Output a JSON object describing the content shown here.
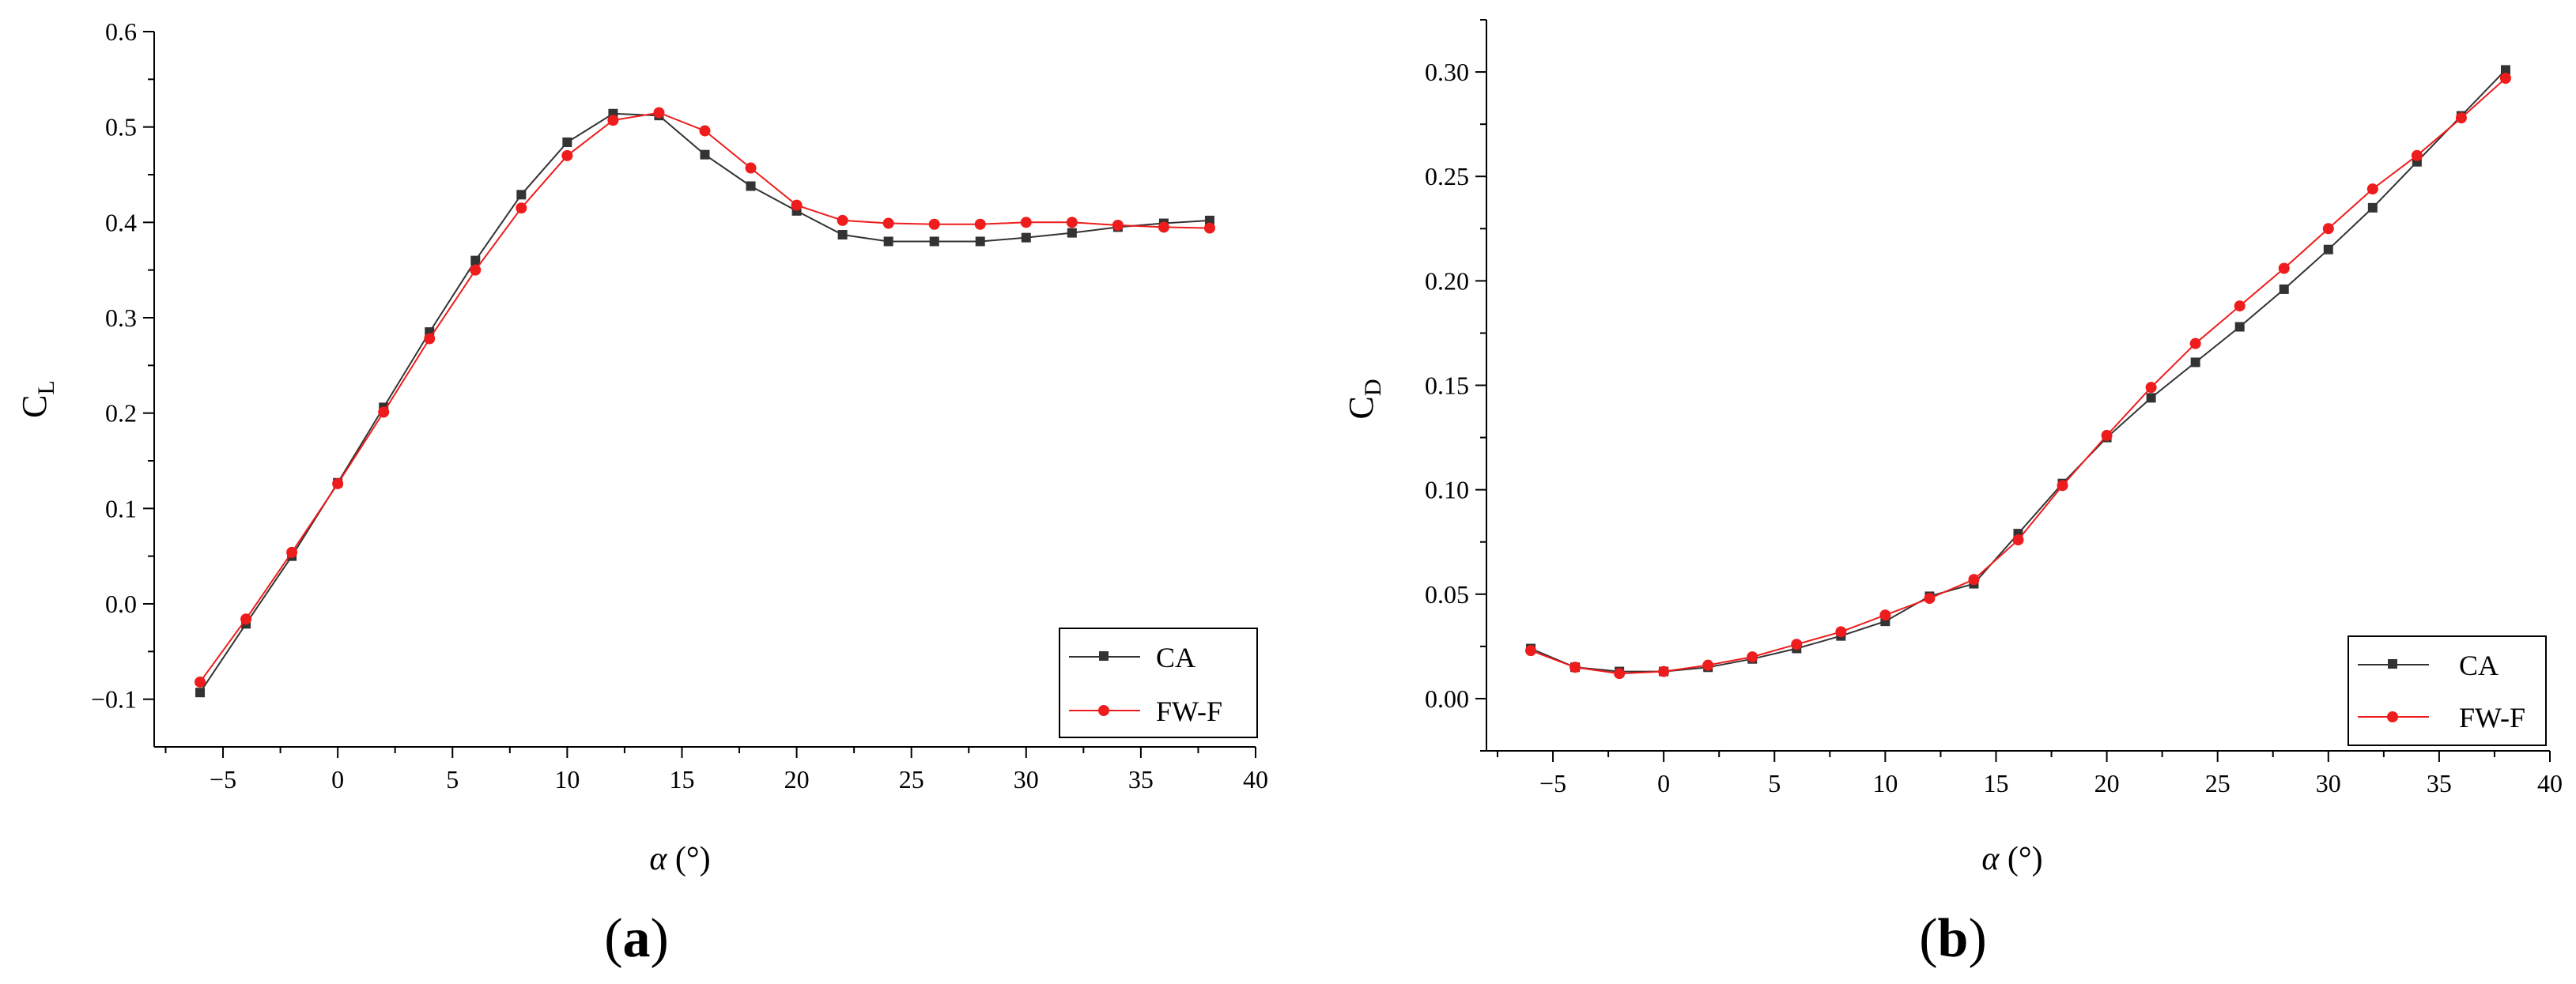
{
  "colors": {
    "CA": "#333333",
    "FW-F": "#ee1c1c",
    "axis": "#000000",
    "legend_border": "#000000"
  },
  "chart_data": [
    {
      "type": "line",
      "panel_label": "(a)",
      "panel_label_parts": {
        "open": "(",
        "letter": "a",
        "close": ")"
      },
      "xlabel": "α (°)",
      "xlabel_parts": {
        "symbol": "α",
        "unit": " (°)"
      },
      "ylabel": "CL",
      "ylabel_parts": {
        "main": "C",
        "sub": "L"
      },
      "xlim": [
        -8,
        40
      ],
      "ylim": [
        -0.15,
        0.6
      ],
      "xticks": [
        -5,
        0,
        5,
        10,
        15,
        20,
        25,
        30,
        35,
        40
      ],
      "xtick_labels": [
        "−5",
        "0",
        "5",
        "10",
        "15",
        "20",
        "25",
        "30",
        "35",
        "40"
      ],
      "yticks": [
        -0.1,
        0.0,
        0.1,
        0.2,
        0.3,
        0.4,
        0.5,
        0.6
      ],
      "ytick_labels": [
        "−0.1",
        "0.0",
        "0.1",
        "0.2",
        "0.3",
        "0.4",
        "0.5",
        "0.6"
      ],
      "legend_position": "bottom-right",
      "grid": false,
      "x": [
        -6,
        -4,
        -2,
        0,
        2,
        4,
        6,
        8,
        10,
        12,
        14,
        16,
        18,
        20,
        22,
        24,
        26,
        28,
        30,
        32,
        34,
        36,
        38
      ],
      "series": [
        {
          "name": "CA",
          "marker": "square",
          "values": [
            -0.093,
            -0.021,
            0.05,
            0.127,
            0.206,
            0.285,
            0.36,
            0.429,
            0.484,
            0.514,
            0.512,
            0.471,
            0.438,
            0.412,
            0.387,
            0.38,
            0.38,
            0.38,
            0.384,
            0.389,
            0.395,
            0.399,
            0.402
          ]
        },
        {
          "name": "FW-F",
          "marker": "circle",
          "values": [
            -0.082,
            -0.016,
            0.054,
            0.126,
            0.201,
            0.278,
            0.35,
            0.415,
            0.47,
            0.507,
            0.515,
            0.496,
            0.457,
            0.418,
            0.402,
            0.399,
            0.398,
            0.398,
            0.4,
            0.4,
            0.397,
            0.395,
            0.394
          ]
        }
      ]
    },
    {
      "type": "line",
      "panel_label": "(b)",
      "panel_label_parts": {
        "open": "(",
        "letter": "b",
        "close": ")"
      },
      "xlabel": "α (°)",
      "xlabel_parts": {
        "symbol": "α",
        "unit": " (°)"
      },
      "ylabel": "CD",
      "ylabel_parts": {
        "main": "C",
        "sub": "D"
      },
      "xlim": [
        -8,
        40
      ],
      "ylim": [
        -0.025,
        0.325
      ],
      "xticks": [
        -5,
        0,
        5,
        10,
        15,
        20,
        25,
        30,
        35,
        40
      ],
      "xtick_labels": [
        "−5",
        "0",
        "5",
        "10",
        "15",
        "20",
        "25",
        "30",
        "35",
        "40"
      ],
      "yticks": [
        0.0,
        0.05,
        0.1,
        0.15,
        0.2,
        0.25,
        0.3
      ],
      "ytick_labels": [
        "0.00",
        "0.05",
        "0.10",
        "0.15",
        "0.20",
        "0.25",
        "0.30"
      ],
      "legend_position": "bottom-right",
      "grid": false,
      "x": [
        -6,
        -4,
        -2,
        0,
        2,
        4,
        6,
        8,
        10,
        12,
        14,
        16,
        18,
        20,
        22,
        24,
        26,
        28,
        30,
        32,
        34,
        36,
        38
      ],
      "series": [
        {
          "name": "CA",
          "marker": "square",
          "values": [
            0.024,
            0.015,
            0.013,
            0.013,
            0.015,
            0.019,
            0.024,
            0.03,
            0.037,
            0.049,
            0.055,
            0.079,
            0.103,
            0.125,
            0.144,
            0.161,
            0.178,
            0.196,
            0.215,
            0.235,
            0.257,
            0.279,
            0.301
          ]
        },
        {
          "name": "FW-F",
          "marker": "circle",
          "values": [
            0.023,
            0.015,
            0.012,
            0.013,
            0.016,
            0.02,
            0.026,
            0.032,
            0.04,
            0.048,
            0.057,
            0.076,
            0.102,
            0.126,
            0.149,
            0.17,
            0.188,
            0.206,
            0.225,
            0.244,
            0.26,
            0.278,
            0.297
          ]
        }
      ]
    }
  ]
}
